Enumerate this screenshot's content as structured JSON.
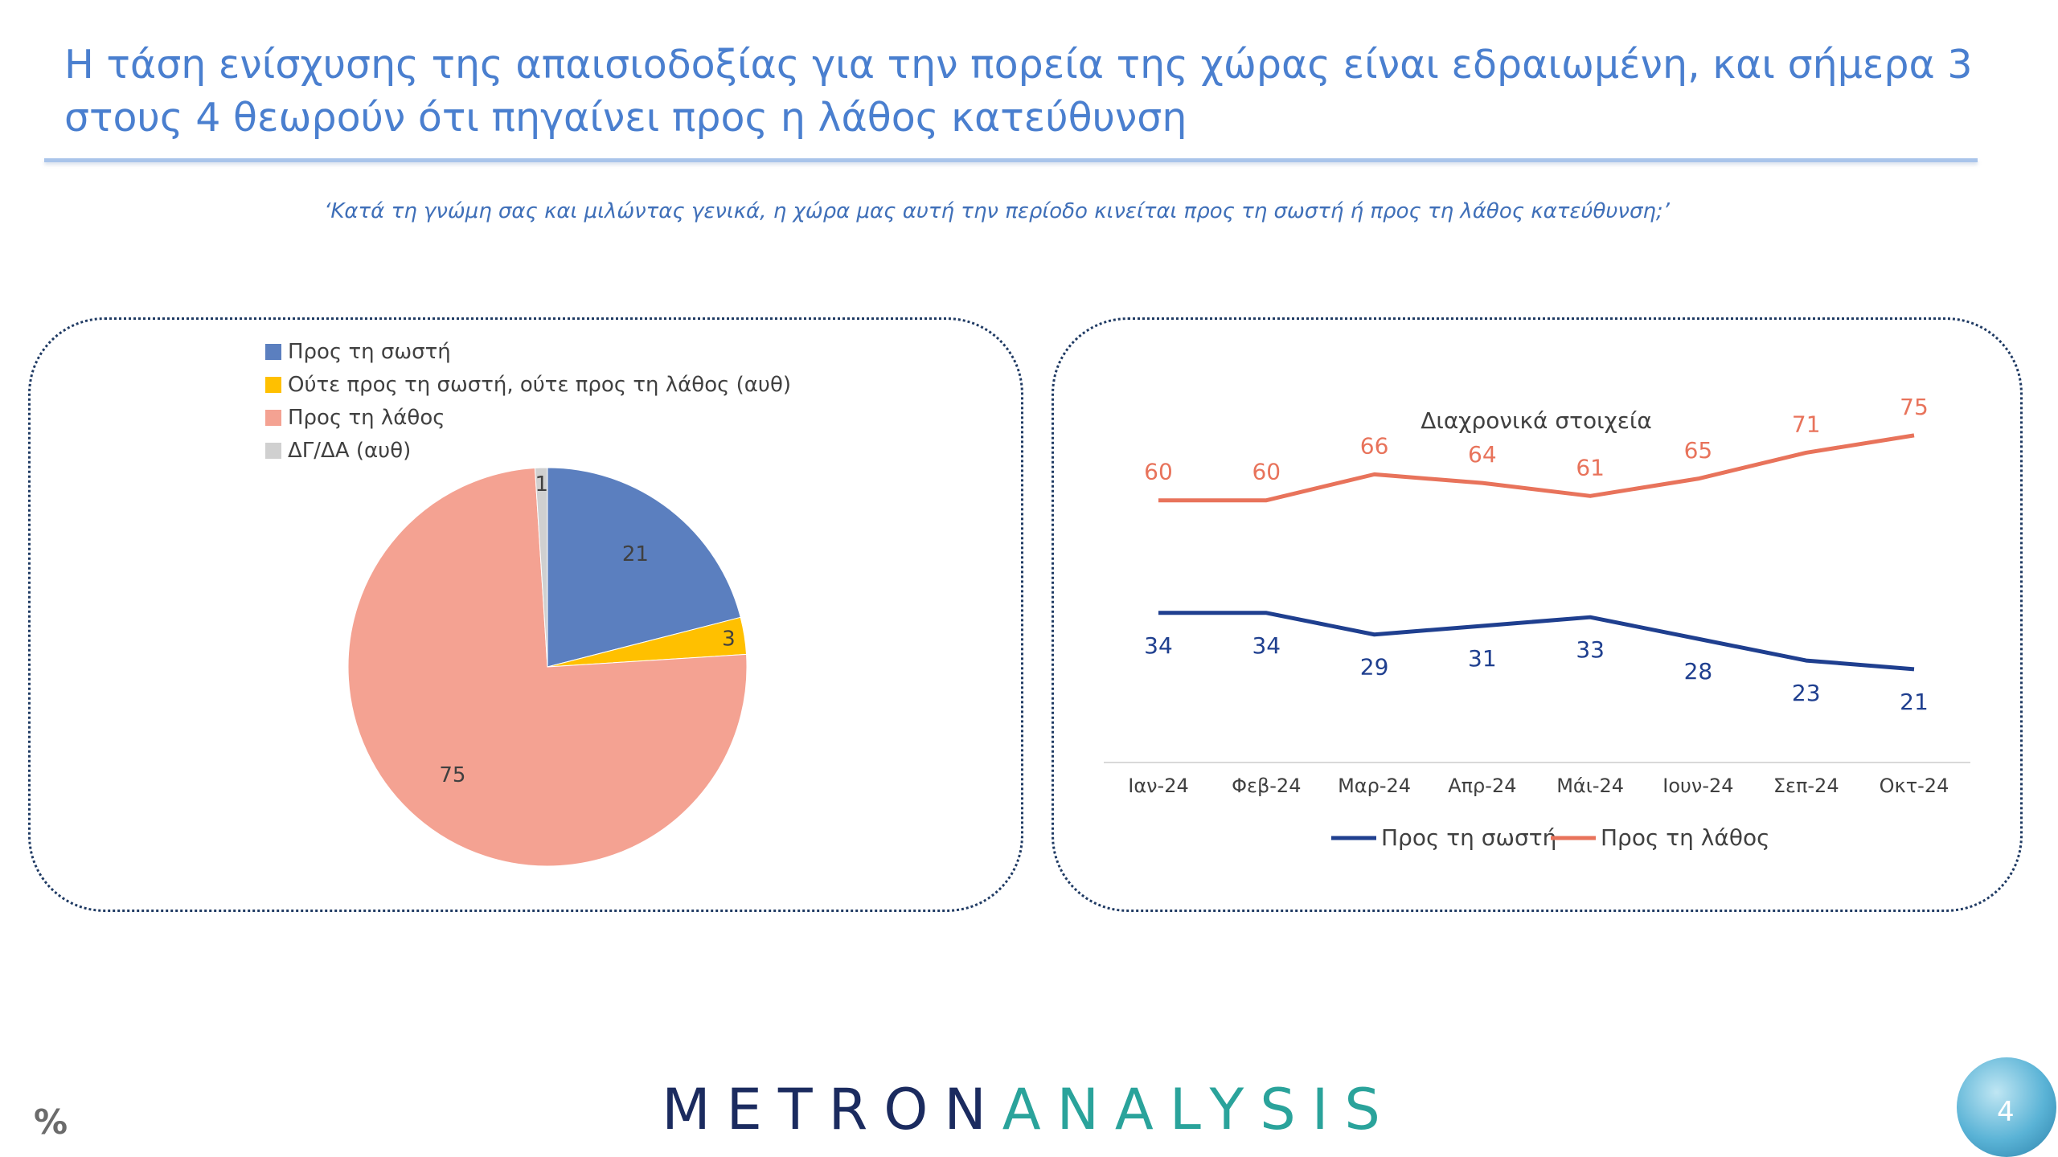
{
  "header": {
    "title": "Η τάση ενίσχυσης της απαισιοδοξίας για την πορεία της χώρας είναι εδραιωμένη, και σήμερα 3 στους 4 θεωρούν ότι πηγαίνει προς η λάθος κατεύθυνση",
    "question": "‘Κατά τη γνώμη σας και μιλώντας γενικά, η χώρα μας αυτή την περίοδο κινείται προς τη σωστή ή προς τη λάθος κατεύθυνση;’"
  },
  "footer": {
    "unit": "%",
    "logo_part1": "METRON",
    "logo_part2": "ANALYSIS",
    "page_number": "4"
  },
  "chart_data": [
    {
      "type": "pie",
      "title": "",
      "legend_position": "top",
      "slices": [
        {
          "label": "Προς τη σωστή",
          "value": 21,
          "color": "#5b7fbf"
        },
        {
          "label": "Ούτε προς τη σωστή, ούτε προς τη λάθος (αυθ)",
          "value": 3,
          "color": "#ffc000"
        },
        {
          "label": "Προς τη λάθος",
          "value": 75,
          "color": "#f4a292"
        },
        {
          "label": "ΔΓ/ΔΑ (αυθ)",
          "value": 1,
          "color": "#d0d0d0"
        }
      ]
    },
    {
      "type": "line",
      "title": "Διαχρονικά στοιχεία",
      "xlabel": "",
      "ylabel": "",
      "grid": false,
      "legend_position": "bottom",
      "categories": [
        "Ιαν-24",
        "Φεβ-24",
        "Μαρ-24",
        "Απρ-24",
        "Μάι-24",
        "Ιουν-24",
        "Σεπ-24",
        "Οκτ-24"
      ],
      "ylim": [
        0,
        85
      ],
      "series": [
        {
          "name": "Προς τη σωστή",
          "values": [
            34,
            34,
            29,
            31,
            33,
            28,
            23,
            21
          ],
          "color": "#1f3f8f",
          "label_position": "below"
        },
        {
          "name": "Προς τη λάθος",
          "values": [
            60,
            60,
            66,
            64,
            61,
            65,
            71,
            75
          ],
          "color": "#e8735b",
          "label_position": "above"
        }
      ]
    }
  ]
}
